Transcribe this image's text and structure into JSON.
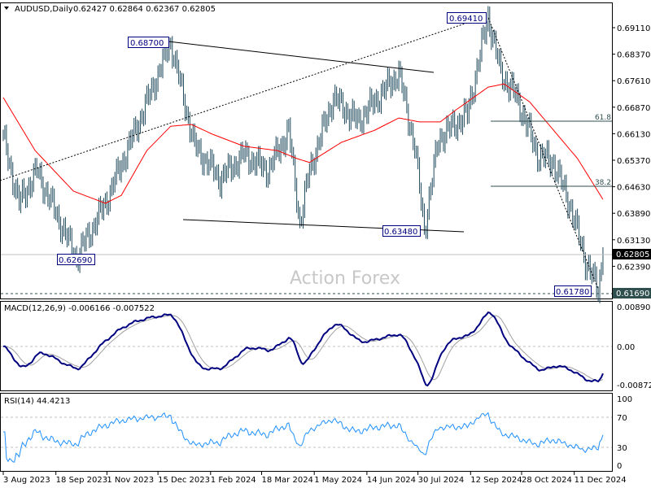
{
  "header": {
    "symbol": "AUDUSD,Daily",
    "ohlc": "0.62427 0.62864 0.62367 0.62805"
  },
  "watermark": "Action Forex",
  "colors": {
    "bars": "#1f4a5c",
    "ma": "#ff0000",
    "macd": "#000080",
    "signal": "#a0a0a0",
    "rsi": "#1e90ff",
    "label_box": "#000080"
  },
  "chart_data": {
    "type": "line",
    "title": "AUDUSD,Daily",
    "price_axis_ticks": [
      "0.69110",
      "0.68370",
      "0.67610",
      "0.66870",
      "0.66130",
      "0.65370",
      "0.64630",
      "0.63890",
      "0.63130",
      "0.62390"
    ],
    "price_range": [
      0.6166,
      0.6963
    ],
    "current_price": "0.62805",
    "dashed_level": "0.61690",
    "x_ticks": [
      {
        "label": "3 Aug 2023",
        "bar": 0
      },
      {
        "label": "18 Sep 2023",
        "bar": 33
      },
      {
        "label": "1 Nov 2023",
        "bar": 65
      },
      {
        "label": "15 Dec 2023",
        "bar": 97
      },
      {
        "label": "1 Feb 2024",
        "bar": 130
      },
      {
        "label": "18 Mar 2024",
        "bar": 162
      },
      {
        "label": "1 May 2024",
        "bar": 195
      },
      {
        "label": "14 Jun 2024",
        "bar": 228
      },
      {
        "label": "30 Jul 2024",
        "bar": 260
      },
      {
        "label": "12 Sep 2024",
        "bar": 293
      },
      {
        "label": "28 Oct 2024",
        "bar": 325
      },
      {
        "label": "11 Dec 2024",
        "bar": 358
      }
    ],
    "price_anchors": [
      [
        0,
        0.6602
      ],
      [
        10,
        0.6421
      ],
      [
        21,
        0.6512
      ],
      [
        44,
        0.6285
      ],
      [
        46,
        0.6269
      ],
      [
        64,
        0.6421
      ],
      [
        87,
        0.667
      ],
      [
        105,
        0.687
      ],
      [
        120,
        0.658
      ],
      [
        136,
        0.6489
      ],
      [
        151,
        0.6557
      ],
      [
        166,
        0.6512
      ],
      [
        179,
        0.6625
      ],
      [
        186,
        0.6365
      ],
      [
        192,
        0.6512
      ],
      [
        207,
        0.6716
      ],
      [
        222,
        0.6648
      ],
      [
        248,
        0.6784
      ],
      [
        258,
        0.658
      ],
      [
        264,
        0.6348
      ],
      [
        273,
        0.6602
      ],
      [
        291,
        0.667
      ],
      [
        304,
        0.6941
      ],
      [
        312,
        0.6784
      ],
      [
        322,
        0.6716
      ],
      [
        335,
        0.6557
      ],
      [
        345,
        0.6535
      ],
      [
        355,
        0.6421
      ],
      [
        365,
        0.6262
      ],
      [
        373,
        0.6178
      ],
      [
        376,
        0.62805
      ]
    ],
    "ma_anchors": [
      [
        0,
        0.6716
      ],
      [
        20,
        0.6568
      ],
      [
        44,
        0.6455
      ],
      [
        64,
        0.6421
      ],
      [
        74,
        0.6443
      ],
      [
        90,
        0.6568
      ],
      [
        105,
        0.6636
      ],
      [
        118,
        0.6641
      ],
      [
        131,
        0.6614
      ],
      [
        151,
        0.658
      ],
      [
        172,
        0.6568
      ],
      [
        184,
        0.6546
      ],
      [
        192,
        0.6535
      ],
      [
        212,
        0.6591
      ],
      [
        233,
        0.6625
      ],
      [
        248,
        0.6659
      ],
      [
        261,
        0.6648
      ],
      [
        274,
        0.6648
      ],
      [
        284,
        0.6682
      ],
      [
        304,
        0.6745
      ],
      [
        314,
        0.6754
      ],
      [
        330,
        0.6704
      ],
      [
        345,
        0.6625
      ],
      [
        360,
        0.6546
      ],
      [
        376,
        0.6432
      ]
    ],
    "annotations": [
      {
        "label": "0.68700"
      },
      {
        "label": "0.69410"
      },
      {
        "label": "0.63480"
      },
      {
        "label": "0.62690"
      },
      {
        "label": "0.61780"
      },
      {
        "label": "61.8"
      },
      {
        "label": "38.2"
      }
    ],
    "macd": {
      "title": "MACD(12,26,9) -0.006166 -0.007522",
      "ticks": [
        "0.008901",
        "0.00",
        "-0.008729"
      ],
      "range": [
        -0.008729,
        0.008901
      ]
    },
    "rsi": {
      "title": "RSI(14) 44.4213",
      "ticks": [
        "100",
        "70",
        "30",
        "0"
      ],
      "range": [
        0,
        100
      ]
    }
  }
}
